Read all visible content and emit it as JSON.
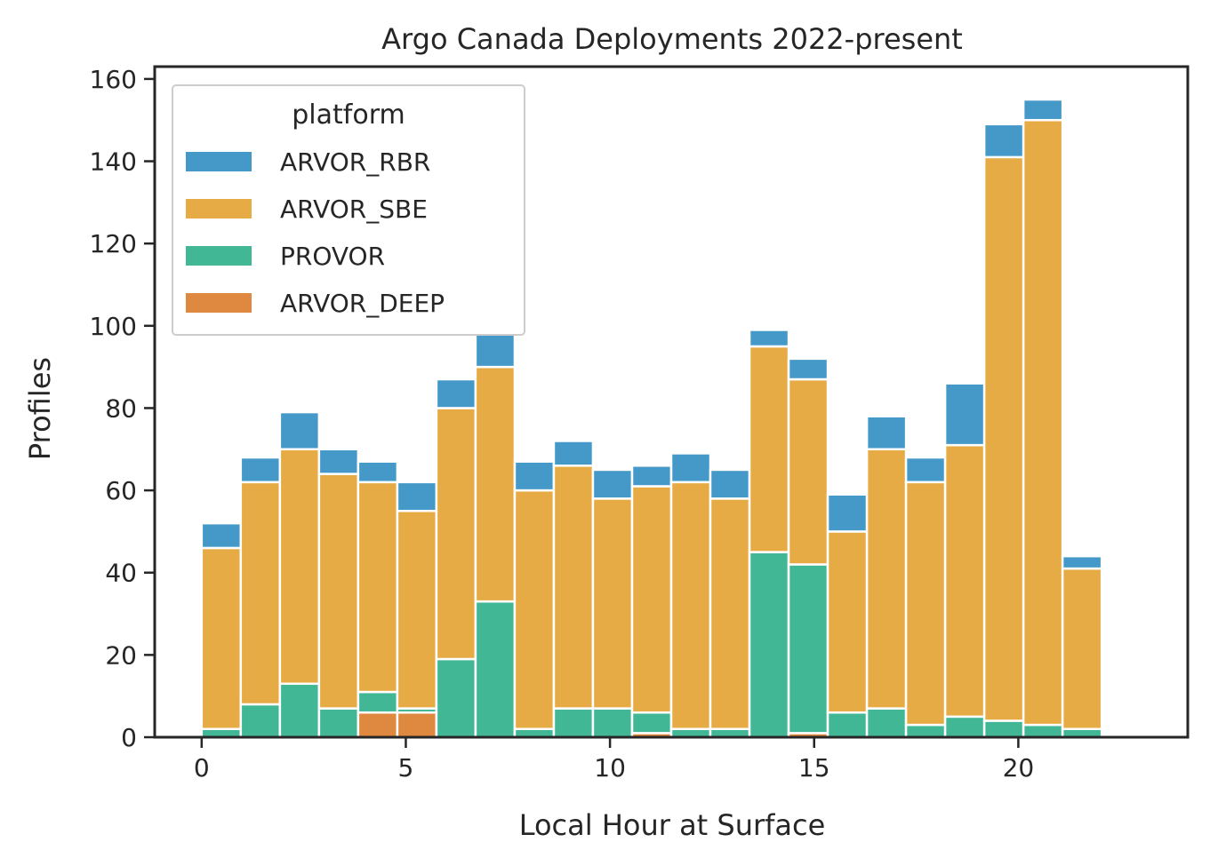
{
  "colors": {
    "ARVOR_RBR": "#4599c8",
    "ARVOR_SBE": "#e6ab44",
    "PROVOR": "#42b796",
    "ARVOR_DEEP": "#df883f",
    "axis": "#262626",
    "bar_edge": "#ffffff"
  },
  "chart_data": {
    "type": "bar",
    "stacked": true,
    "title": "Argo Canada Deployments 2022-present",
    "xlabel": "Local Hour at Surface",
    "ylabel": "Profiles",
    "xlim": [
      -1.15,
      24.15
    ],
    "ylim": [
      0,
      163
    ],
    "x_ticks": [
      0,
      5,
      10,
      15,
      20
    ],
    "y_ticks": [
      0,
      20,
      40,
      60,
      80,
      100,
      120,
      140,
      160
    ],
    "grid": false,
    "legend": {
      "title": "platform",
      "position": "top-left"
    },
    "bin_edges": [
      0,
      0.958,
      1.917,
      2.875,
      3.833,
      4.792,
      5.75,
      6.708,
      7.667,
      8.625,
      9.583,
      10.542,
      11.5,
      12.458,
      13.417,
      14.375,
      15.333,
      16.292,
      17.25,
      18.208,
      19.167,
      20.125,
      21.083,
      22.042,
      23
    ],
    "series": [
      {
        "name": "ARVOR_DEEP",
        "values": [
          0,
          0,
          0,
          0,
          6,
          6,
          0,
          0,
          0,
          0,
          0,
          1,
          0,
          0,
          0,
          1,
          0,
          0,
          0,
          0,
          0,
          0,
          0,
          0
        ]
      },
      {
        "name": "PROVOR",
        "values": [
          2,
          8,
          13,
          7,
          5,
          1,
          19,
          33,
          2,
          7,
          7,
          5,
          2,
          2,
          45,
          41,
          6,
          7,
          3,
          5,
          4,
          3,
          2,
          0
        ]
      },
      {
        "name": "ARVOR_SBE",
        "values": [
          44,
          54,
          57,
          57,
          51,
          48,
          61,
          57,
          58,
          59,
          51,
          55,
          60,
          56,
          50,
          45,
          44,
          63,
          59,
          66,
          137,
          147,
          39,
          0
        ]
      },
      {
        "name": "ARVOR_RBR",
        "values": [
          6,
          6,
          9,
          6,
          5,
          7,
          7,
          8,
          7,
          6,
          7,
          5,
          7,
          7,
          4,
          5,
          9,
          8,
          6,
          15,
          8,
          5,
          3,
          0
        ]
      }
    ],
    "legend_order": [
      "ARVOR_RBR",
      "ARVOR_SBE",
      "PROVOR",
      "ARVOR_DEEP"
    ]
  }
}
